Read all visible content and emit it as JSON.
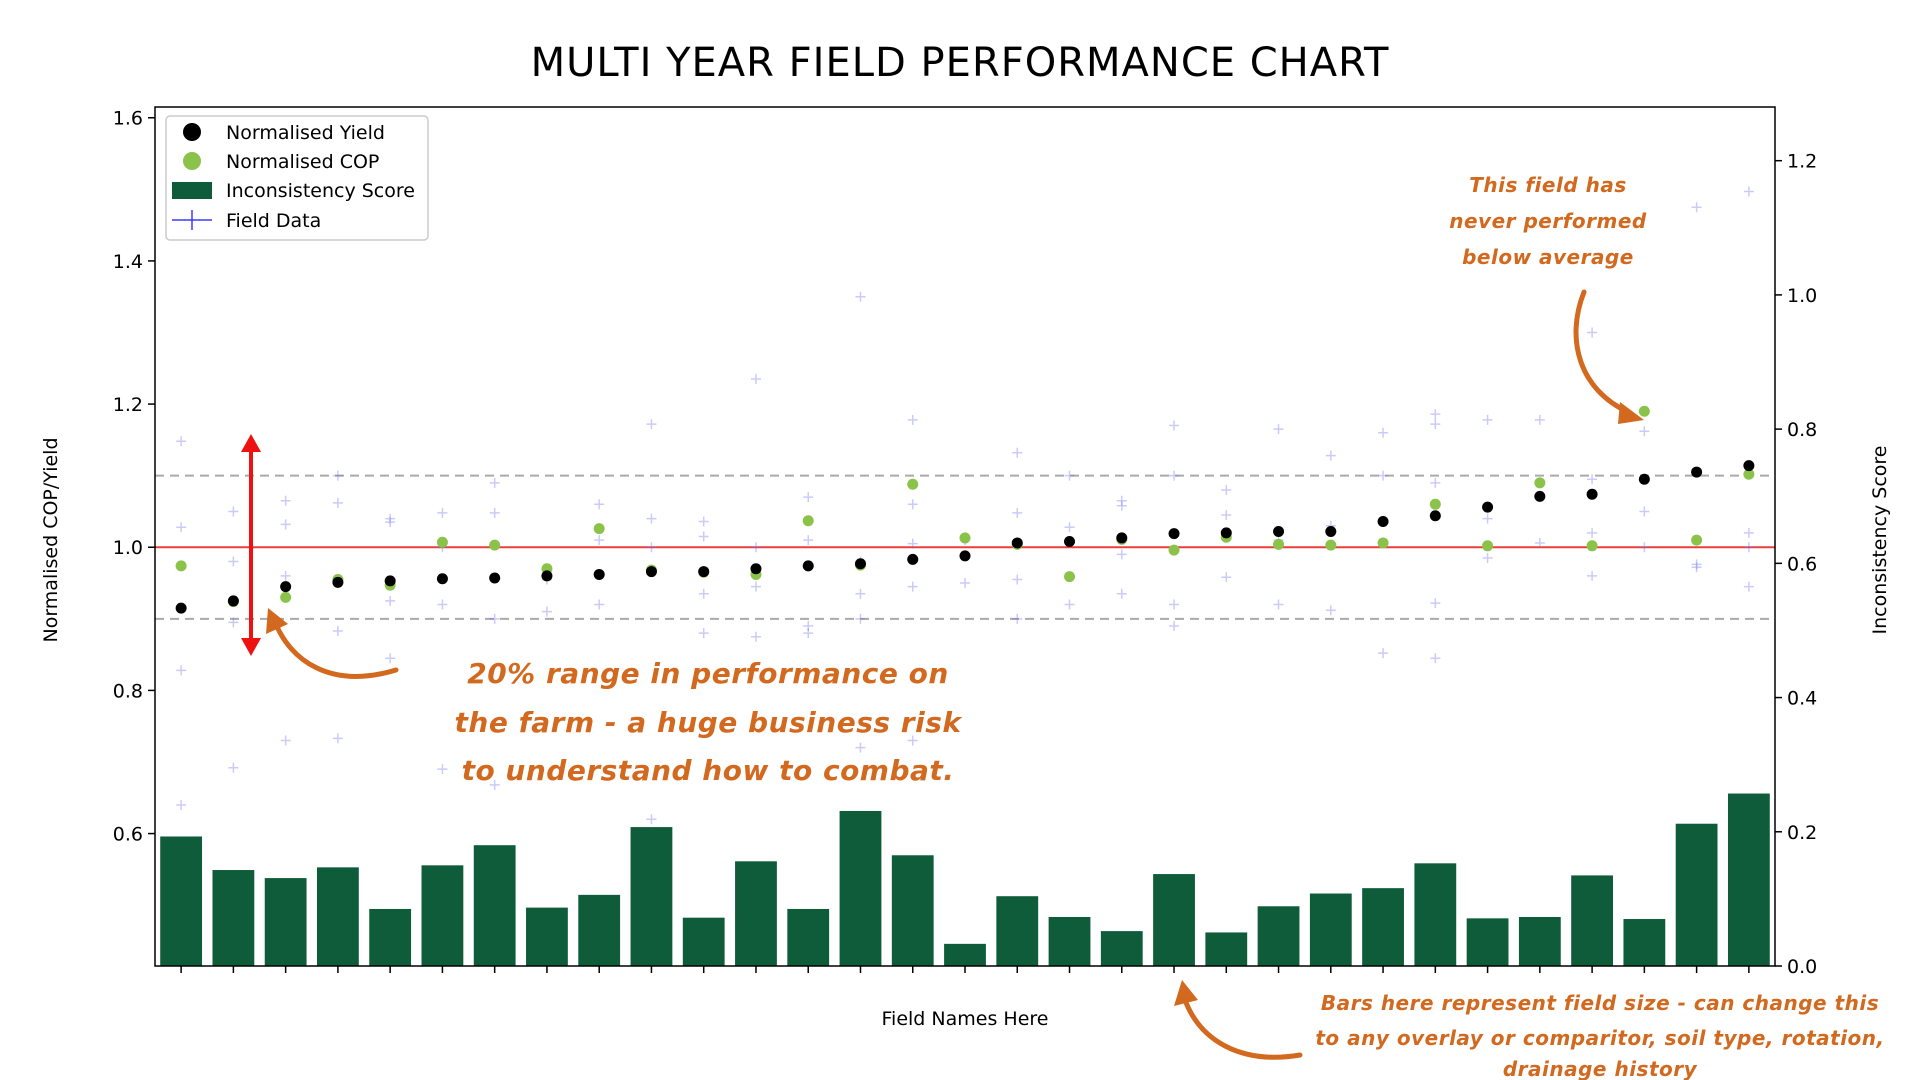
{
  "chart_data": {
    "type": "scatter",
    "title": "MULTI YEAR FIELD PERFORMANCE CHART",
    "xlabel": "Field Names Here",
    "ylabel": "Normalised COP/Yield",
    "y2label": "Inconsistency Score",
    "ylim": [
      0.415,
      1.615
    ],
    "y2lim": [
      0.0,
      1.28
    ],
    "yticks": [
      "0.6",
      "0.8",
      "1.0",
      "1.2",
      "1.4",
      "1.6"
    ],
    "y2ticks": [
      "0.0",
      "0.2",
      "0.4",
      "0.6",
      "0.8",
      "1.0",
      "1.2"
    ],
    "reference_lines": {
      "average": 1.0,
      "band_low": 0.9,
      "band_high": 1.1
    },
    "legend": {
      "placement": "top-left",
      "entries": [
        "Normalised Yield",
        "Normalised COP",
        "Inconsistency Score",
        "Field Data"
      ]
    },
    "colors": {
      "yield": "#000000",
      "cop": "#8bc34a",
      "bars": "#0f5c3a",
      "field_data": "#6a6af0",
      "average_line": "#e8413c",
      "band_lines": "#aaaaaa",
      "arrow": "#ee1111",
      "annotation": "#d2691e"
    },
    "series": [
      {
        "name": "Normalised Yield",
        "values": [
          0.915,
          0.925,
          0.945,
          0.951,
          0.953,
          0.956,
          0.957,
          0.96,
          0.962,
          0.966,
          0.966,
          0.97,
          0.974,
          0.977,
          0.983,
          0.988,
          1.006,
          1.008,
          1.013,
          1.019,
          1.02,
          1.022,
          1.022,
          1.036,
          1.044,
          1.056,
          1.071,
          1.074,
          1.095,
          1.105,
          1.114
        ]
      },
      {
        "name": "Normalised COP",
        "values": [
          0.974,
          0.924,
          0.93,
          0.955,
          0.947,
          1.007,
          1.003,
          0.97,
          1.026,
          0.968,
          0.965,
          0.962,
          1.037,
          0.975,
          1.088,
          1.013,
          1.004,
          0.959,
          1.011,
          0.996,
          1.014,
          1.004,
          1.003,
          1.006,
          1.06,
          1.002,
          1.09,
          1.002,
          1.19,
          1.01,
          1.102
        ]
      },
      {
        "name": "Inconsistency Score",
        "values": [
          0.193,
          0.143,
          0.131,
          0.147,
          0.085,
          0.15,
          0.18,
          0.087,
          0.106,
          0.207,
          0.072,
          0.156,
          0.085,
          0.231,
          0.165,
          0.033,
          0.104,
          0.073,
          0.052,
          0.137,
          0.05,
          0.089,
          0.108,
          0.116,
          0.153,
          0.071,
          0.073,
          0.135,
          0.07,
          0.212,
          0.257
        ]
      },
      {
        "name": "Field Data",
        "points": [
          [
            0,
            1.148
          ],
          [
            0,
            1.028
          ],
          [
            0,
            0.828
          ],
          [
            0,
            0.64
          ],
          [
            1,
            1.05
          ],
          [
            1,
            0.98
          ],
          [
            1,
            0.895
          ],
          [
            1,
            0.692
          ],
          [
            2,
            1.065
          ],
          [
            2,
            1.032
          ],
          [
            2,
            0.96
          ],
          [
            2,
            0.73
          ],
          [
            3,
            1.1
          ],
          [
            3,
            1.062
          ],
          [
            3,
            0.883
          ],
          [
            3,
            0.733
          ],
          [
            4,
            1.04
          ],
          [
            4,
            1.035
          ],
          [
            4,
            0.925
          ],
          [
            4,
            0.845
          ],
          [
            5,
            1.048
          ],
          [
            5,
            1.0
          ],
          [
            5,
            0.92
          ],
          [
            5,
            0.69
          ],
          [
            6,
            1.09
          ],
          [
            6,
            1.048
          ],
          [
            6,
            0.9
          ],
          [
            6,
            0.668
          ],
          [
            7,
            0.97
          ],
          [
            7,
            0.955
          ],
          [
            7,
            0.91
          ],
          [
            8,
            1.06
          ],
          [
            8,
            1.01
          ],
          [
            8,
            0.92
          ],
          [
            9,
            1.172
          ],
          [
            9,
            1.04
          ],
          [
            9,
            1.0
          ],
          [
            9,
            0.62
          ],
          [
            10,
            1.036
          ],
          [
            10,
            1.015
          ],
          [
            10,
            0.935
          ],
          [
            10,
            0.88
          ],
          [
            11,
            1.235
          ],
          [
            11,
            1.0
          ],
          [
            11,
            0.945
          ],
          [
            11,
            0.875
          ],
          [
            12,
            1.07
          ],
          [
            12,
            1.01
          ],
          [
            12,
            0.89
          ],
          [
            12,
            0.88
          ],
          [
            13,
            1.35
          ],
          [
            13,
            0.98
          ],
          [
            13,
            0.935
          ],
          [
            13,
            0.9
          ],
          [
            13,
            0.72
          ],
          [
            14,
            1.178
          ],
          [
            14,
            1.06
          ],
          [
            14,
            1.005
          ],
          [
            14,
            0.945
          ],
          [
            14,
            0.73
          ],
          [
            15,
            1.01
          ],
          [
            15,
            0.95
          ],
          [
            16,
            1.132
          ],
          [
            16,
            1.048
          ],
          [
            16,
            0.955
          ],
          [
            16,
            0.9
          ],
          [
            17,
            1.1
          ],
          [
            17,
            1.028
          ],
          [
            17,
            0.92
          ],
          [
            18,
            1.065
          ],
          [
            18,
            1.058
          ],
          [
            18,
            0.99
          ],
          [
            18,
            0.935
          ],
          [
            19,
            1.17
          ],
          [
            19,
            1.1
          ],
          [
            19,
            0.92
          ],
          [
            19,
            0.89
          ],
          [
            20,
            1.08
          ],
          [
            20,
            1.045
          ],
          [
            20,
            0.958
          ],
          [
            21,
            1.165
          ],
          [
            21,
            1.01
          ],
          [
            21,
            0.92
          ],
          [
            22,
            1.128
          ],
          [
            22,
            1.03
          ],
          [
            22,
            0.912
          ],
          [
            23,
            1.16
          ],
          [
            23,
            1.1
          ],
          [
            23,
            0.852
          ],
          [
            24,
            1.186
          ],
          [
            24,
            1.172
          ],
          [
            24,
            1.09
          ],
          [
            24,
            0.922
          ],
          [
            24,
            0.845
          ],
          [
            25,
            1.178
          ],
          [
            25,
            1.04
          ],
          [
            25,
            0.985
          ],
          [
            26,
            1.178
          ],
          [
            26,
            1.006
          ],
          [
            27,
            1.3
          ],
          [
            27,
            1.095
          ],
          [
            27,
            1.02
          ],
          [
            27,
            0.96
          ],
          [
            28,
            1.162
          ],
          [
            28,
            1.05
          ],
          [
            28,
            1.0
          ],
          [
            29,
            1.475
          ],
          [
            29,
            0.976
          ],
          [
            29,
            0.972
          ],
          [
            30,
            1.497
          ],
          [
            30,
            1.02
          ],
          [
            30,
            1.0
          ],
          [
            30,
            0.945
          ]
        ]
      }
    ],
    "annotations": [
      {
        "text": [
          "20% range in performance on",
          "the farm - a huge business risk",
          "to understand how to combat."
        ],
        "near": "range-arrow"
      },
      {
        "text": [
          "This field has",
          "never performed",
          "below average"
        ],
        "near": "top-right-field"
      },
      {
        "text": [
          "Bars here represent field size - can change this",
          "to any overlay or comparitor, soil type, rotation,",
          "drainage history"
        ],
        "near": "bars"
      }
    ]
  }
}
